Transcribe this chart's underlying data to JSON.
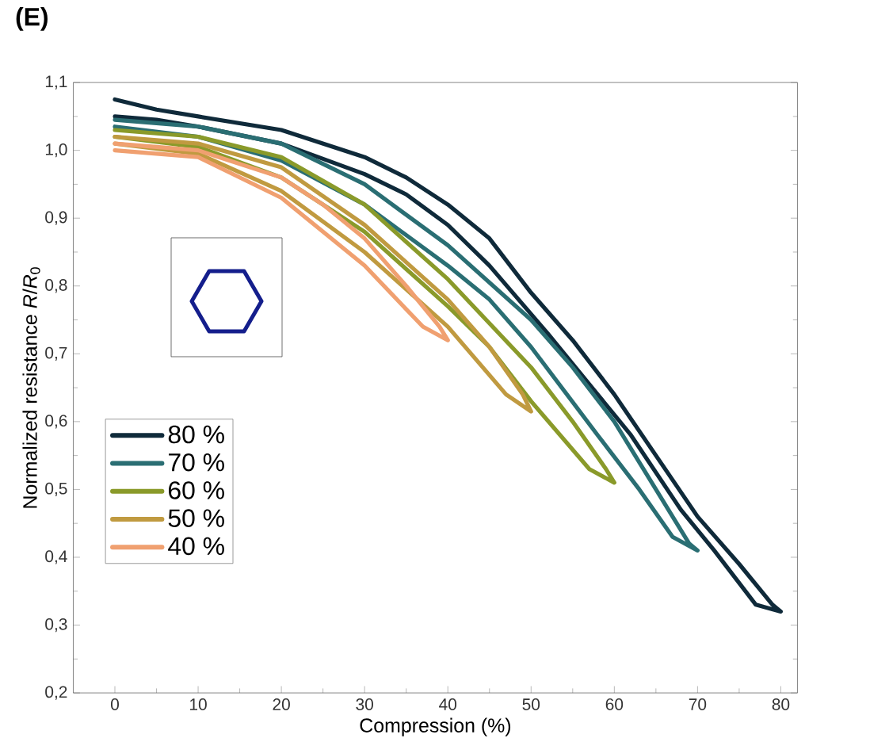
{
  "chart_data": {
    "type": "line",
    "title": "(E)",
    "xlabel": "Compression (%)",
    "ylabel": "Normalized resistance *R*/*R*$_{0}$",
    "xlim": [
      -5,
      82
    ],
    "ylim": [
      0.2,
      1.1
    ],
    "xticks": [
      0,
      10,
      20,
      30,
      40,
      50,
      60,
      70,
      80
    ],
    "yticks": [
      {
        "value": 0.2,
        "label": "0,2"
      },
      {
        "value": 0.3,
        "label": "0,3"
      },
      {
        "value": 0.4,
        "label": "0,4"
      },
      {
        "value": 0.5,
        "label": "0,5"
      },
      {
        "value": 0.6,
        "label": "0,6"
      },
      {
        "value": 0.7,
        "label": "0,7"
      },
      {
        "value": 0.8,
        "label": "0,8"
      },
      {
        "value": 0.9,
        "label": "0,9"
      },
      {
        "value": 1.0,
        "label": "1,0"
      },
      {
        "value": 1.1,
        "label": "1,1"
      }
    ],
    "legend": "left",
    "line_style": "solid",
    "series": [
      {
        "name": "80 %",
        "color": "#0f2a3a",
        "x": [
          0,
          5,
          10,
          20,
          30,
          35,
          40,
          45,
          50,
          55,
          60,
          65,
          70,
          75,
          79,
          80,
          77,
          72,
          68,
          62,
          58,
          52,
          45,
          40,
          35,
          30,
          20,
          10,
          5,
          0
        ],
        "values": [
          1.075,
          1.06,
          1.05,
          1.03,
          0.99,
          0.96,
          0.92,
          0.87,
          0.79,
          0.72,
          0.64,
          0.55,
          0.46,
          0.39,
          0.33,
          0.32,
          0.33,
          0.41,
          0.47,
          0.58,
          0.64,
          0.73,
          0.83,
          0.89,
          0.935,
          0.965,
          1.01,
          1.035,
          1.045,
          1.05
        ]
      },
      {
        "name": "70 %",
        "color": "#2a6e73",
        "x": [
          0,
          10,
          20,
          30,
          40,
          50,
          55,
          60,
          65,
          69,
          70,
          67,
          63,
          58,
          50,
          45,
          40,
          30,
          20,
          10,
          0
        ],
        "values": [
          1.045,
          1.035,
          1.01,
          0.95,
          0.86,
          0.75,
          0.68,
          0.6,
          0.5,
          0.42,
          0.41,
          0.43,
          0.5,
          0.58,
          0.71,
          0.78,
          0.83,
          0.92,
          0.985,
          1.02,
          1.035
        ]
      },
      {
        "name": "60 %",
        "color": "#8a9a2a",
        "x": [
          0,
          10,
          20,
          30,
          40,
          50,
          55,
          59,
          60,
          57,
          50,
          45,
          40,
          30,
          20,
          10,
          0
        ],
        "values": [
          1.03,
          1.02,
          0.99,
          0.92,
          0.81,
          0.68,
          0.6,
          0.53,
          0.51,
          0.53,
          0.63,
          0.71,
          0.77,
          0.88,
          0.96,
          1.005,
          1.02
        ]
      },
      {
        "name": "50 %",
        "color": "#c09a40",
        "x": [
          0,
          10,
          20,
          30,
          40,
          45,
          49,
          50,
          47,
          40,
          30,
          20,
          10,
          0
        ],
        "values": [
          1.02,
          1.01,
          0.975,
          0.89,
          0.78,
          0.71,
          0.64,
          0.615,
          0.64,
          0.74,
          0.85,
          0.94,
          0.995,
          1.01
        ]
      },
      {
        "name": "40 %",
        "color": "#f0a070",
        "x": [
          0,
          10,
          20,
          25,
          30,
          35,
          39,
          40,
          37,
          30,
          20,
          10,
          0
        ],
        "values": [
          1.01,
          1.0,
          0.96,
          0.92,
          0.87,
          0.8,
          0.74,
          0.72,
          0.74,
          0.83,
          0.93,
          0.99,
          1.0
        ]
      }
    ]
  }
}
